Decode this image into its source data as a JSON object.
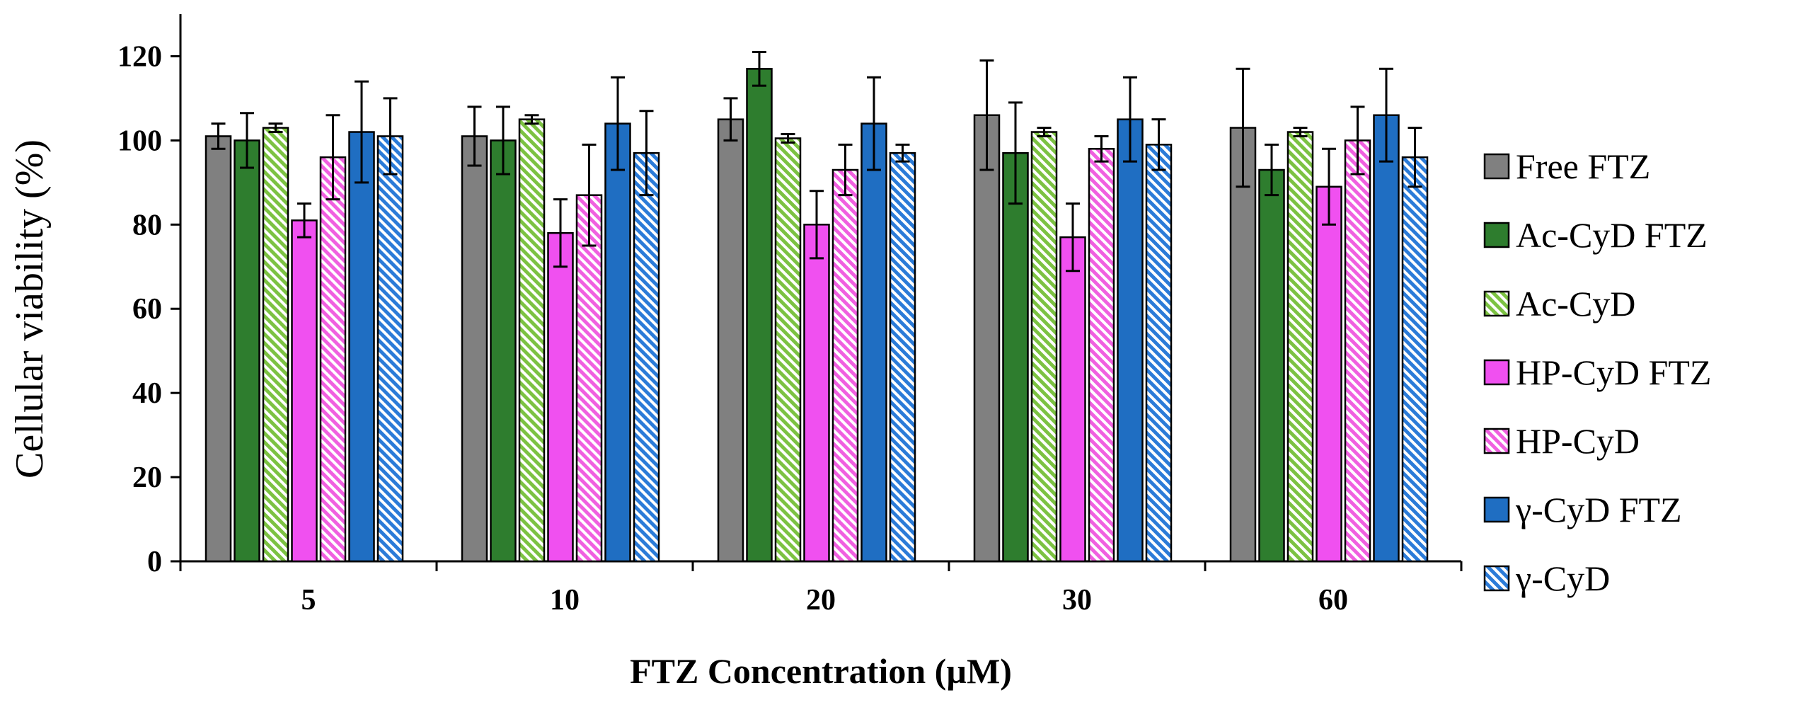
{
  "chart_data": {
    "type": "bar",
    "title": "",
    "xlabel": "FTZ Concentration (µM)",
    "ylabel": "Cellular viability (%)",
    "ylim": [
      0,
      130
    ],
    "yticks": [
      0,
      20,
      40,
      60,
      80,
      100,
      120
    ],
    "grid": false,
    "legend_position": "right",
    "categories": [
      "5",
      "10",
      "20",
      "30",
      "60"
    ],
    "series": [
      {
        "name": "Free FTZ",
        "color": "#808080",
        "pattern": "solid",
        "values": [
          101,
          101,
          105,
          106,
          103
        ],
        "errors": [
          3,
          7,
          5,
          13,
          14
        ]
      },
      {
        "name": "Ac-CyD FTZ",
        "color": "#2e7d2e",
        "pattern": "solid",
        "values": [
          100,
          100,
          117,
          97,
          93
        ],
        "errors": [
          6.5,
          8,
          4,
          12,
          6
        ]
      },
      {
        "name": "Ac-CyD",
        "color": "#7cc242",
        "pattern": "hatched",
        "values": [
          103,
          105,
          100.5,
          102,
          102
        ],
        "errors": [
          1,
          1,
          1,
          1,
          1
        ]
      },
      {
        "name": "HP-CyD FTZ",
        "color": "#f050f0",
        "pattern": "solid",
        "values": [
          81,
          78,
          80,
          77,
          89
        ],
        "errors": [
          4,
          8,
          8,
          8,
          9
        ]
      },
      {
        "name": "HP-CyD",
        "color": "#f060e0",
        "pattern": "hatched",
        "values": [
          96,
          87,
          93,
          98,
          100
        ],
        "errors": [
          10,
          12,
          6,
          3,
          8
        ]
      },
      {
        "name": "γ-CyD FTZ",
        "color": "#1f6ec2",
        "pattern": "solid",
        "values": [
          102,
          104,
          104,
          105,
          106
        ],
        "errors": [
          12,
          11,
          11,
          10,
          11
        ]
      },
      {
        "name": "γ-CyD",
        "color": "#2b7bd8",
        "pattern": "hatched",
        "values": [
          101,
          97,
          97,
          99,
          96
        ],
        "errors": [
          9,
          10,
          2,
          6,
          7
        ]
      }
    ]
  }
}
